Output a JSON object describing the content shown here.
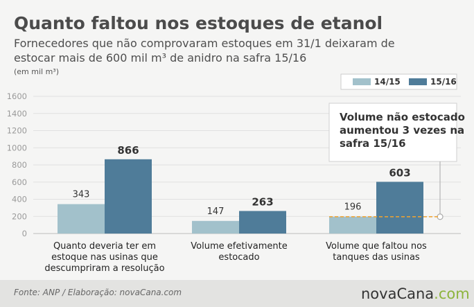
{
  "chart_data": {
    "type": "bar",
    "title": "Quanto faltou nos estoques de etanol",
    "subtitle_lines": [
      "Fornecedores que não comprovaram estoques em 31/1 deixaram de",
      "estocar mais de 600 mil m³ de anidro na safra 15/16"
    ],
    "unit_label": "(em mil m³)",
    "ylim": [
      0,
      1600
    ],
    "yticks": [
      0,
      200,
      400,
      600,
      800,
      1000,
      1200,
      1400,
      1600
    ],
    "grid": true,
    "legend_position": "top-right",
    "categories": [
      [
        "Quanto deveria ter em",
        "estoque nas usinas que",
        "descumpriram a resolução"
      ],
      [
        "Volume efetivamente",
        "estocado"
      ],
      [
        "Volume que faltou nos",
        "tanques das usinas"
      ]
    ],
    "series": [
      {
        "name": "14/15",
        "color": "#a2c1cb",
        "values": [
          343,
          147,
          196
        ]
      },
      {
        "name": "15/16",
        "color": "#4f7c99",
        "values": [
          866,
          263,
          603
        ]
      }
    ],
    "annotation": {
      "lines": [
        "Volume não estocado",
        "aumentou 3 vezes na",
        "safra 15/16"
      ],
      "reference_value": 196,
      "reference_color": "#f0a330"
    }
  },
  "footer": {
    "source": "Fonte: ANP / Elaboração: novaCana.com",
    "logo_main": "novaCana",
    "logo_suffix": ".com"
  }
}
